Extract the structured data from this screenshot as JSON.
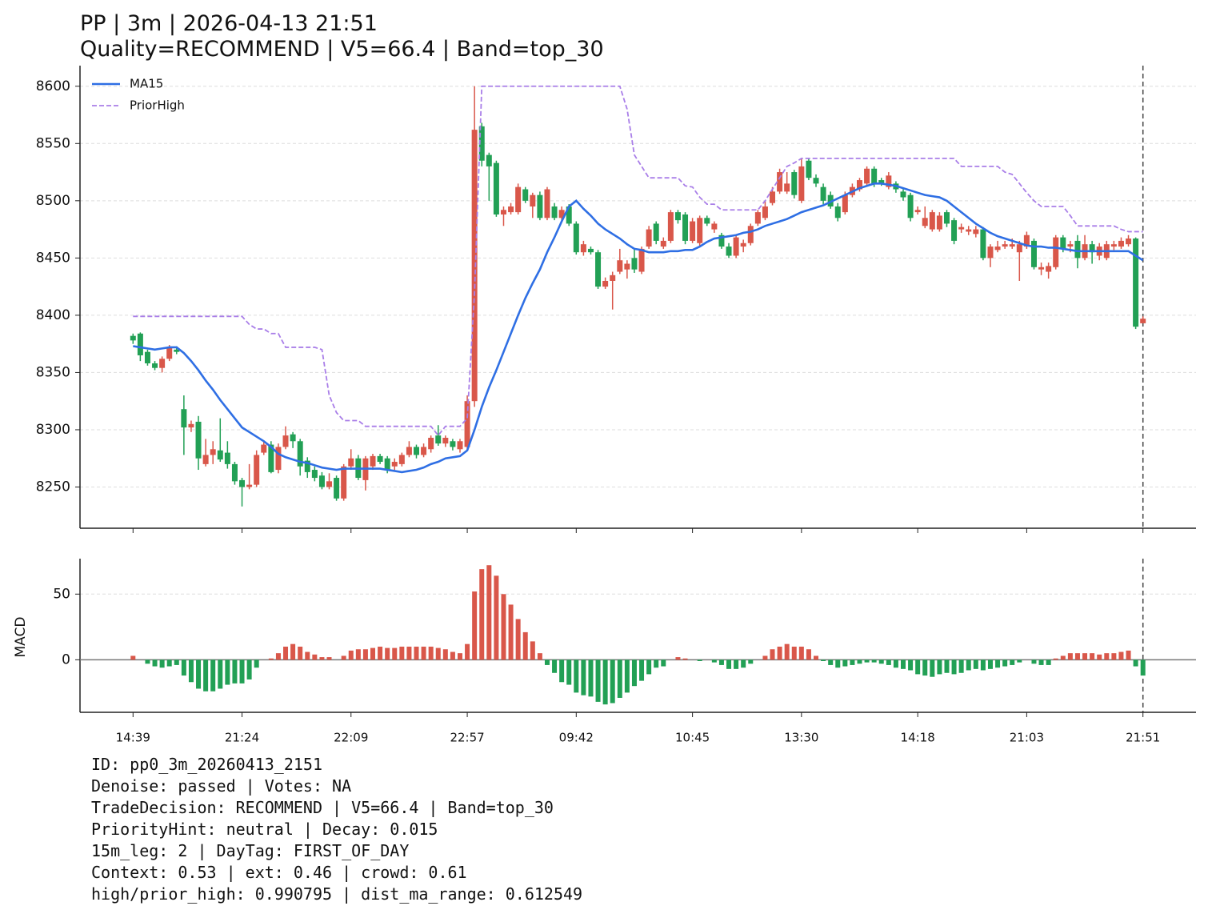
{
  "chart_data": [
    {
      "type": "candlestick",
      "title_lines": [
        "PP | 3m | 2026-04-13 21:51",
        "Quality=RECOMMEND | V5=66.4 | Band=top_30"
      ],
      "up_color": "#d9574a",
      "down_color": "#22a055",
      "open": [
        8382,
        8384,
        8368,
        8358,
        8354,
        8362,
        8370,
        8318,
        8302,
        8307,
        8270,
        8278,
        8282,
        8280,
        8270,
        8256,
        8250,
        8252,
        8280,
        8287,
        8265,
        8285,
        8296,
        8290,
        8273,
        8265,
        8260,
        8250,
        8258,
        8240,
        8268,
        8275,
        8256,
        8268,
        8277,
        8275,
        8268,
        8270,
        8278,
        8285,
        8278,
        8283,
        8295,
        8288,
        8290,
        8283,
        8285,
        8325,
        8565,
        8540,
        8533,
        8488,
        8490,
        8490,
        8510,
        8495,
        8505,
        8485,
        8495,
        8485,
        8495,
        8480,
        8455,
        8458,
        8455,
        8425,
        8430,
        8438,
        8440,
        8450,
        8438,
        8460,
        8480,
        8460,
        8465,
        8490,
        8488,
        8465,
        8463,
        8485,
        8475,
        8470,
        8460,
        8452,
        8460,
        8463,
        8480,
        8485,
        8498,
        8508,
        8508,
        8525,
        8500,
        8535,
        8520,
        8512,
        8505,
        8495,
        8490,
        8505,
        8510,
        8515,
        8528,
        8518,
        8512,
        8515,
        8508,
        8505,
        8490,
        8478,
        8475,
        8475,
        8490,
        8483,
        8475,
        8473,
        8471,
        8475,
        8450,
        8457,
        8460,
        8460,
        8455,
        8460,
        8465,
        8440,
        8438,
        8442,
        8468,
        8460,
        8465,
        8450,
        8462,
        8452,
        8450,
        8460,
        8460,
        8462,
        8467,
        8393
      ],
      "high": [
        8384,
        8385,
        8370,
        8360,
        8364,
        8374,
        8373,
        8330,
        8308,
        8312,
        8292,
        8290,
        8310,
        8290,
        8272,
        8258,
        8270,
        8282,
        8290,
        8290,
        8288,
        8303,
        8298,
        8292,
        8276,
        8268,
        8263,
        8262,
        8260,
        8270,
        8283,
        8278,
        8277,
        8279,
        8279,
        8277,
        8275,
        8280,
        8290,
        8287,
        8288,
        8295,
        8304,
        8295,
        8292,
        8292,
        8330,
        8600,
        8568,
        8542,
        8535,
        8495,
        8498,
        8515,
        8512,
        8507,
        8508,
        8512,
        8498,
        8495,
        8497,
        8482,
        8465,
        8460,
        8457,
        8433,
        8438,
        8458,
        8448,
        8458,
        8460,
        8478,
        8482,
        8468,
        8492,
        8492,
        8490,
        8485,
        8487,
        8487,
        8482,
        8472,
        8463,
        8470,
        8466,
        8480,
        8492,
        8500,
        8512,
        8528,
        8525,
        8527,
        8537,
        8537,
        8523,
        8515,
        8508,
        8498,
        8508,
        8515,
        8520,
        8530,
        8530,
        8520,
        8525,
        8517,
        8510,
        8507,
        8495,
        8495,
        8492,
        8490,
        8492,
        8485,
        8480,
        8478,
        8478,
        8477,
        8462,
        8465,
        8465,
        8467,
        8465,
        8473,
        8467,
        8446,
        8446,
        8470,
        8470,
        8465,
        8470,
        8470,
        8465,
        8463,
        8465,
        8465,
        8468,
        8470,
        8468,
        8399
      ],
      "low": [
        8375,
        8360,
        8356,
        8352,
        8350,
        8360,
        8366,
        8278,
        8298,
        8265,
        8268,
        8270,
        8272,
        8266,
        8252,
        8233,
        8248,
        8250,
        8278,
        8262,
        8262,
        8283,
        8284,
        8260,
        8258,
        8255,
        8248,
        8248,
        8238,
        8238,
        8265,
        8256,
        8247,
        8265,
        8270,
        8262,
        8265,
        8268,
        8276,
        8275,
        8276,
        8280,
        8286,
        8285,
        8282,
        8280,
        8283,
        8320,
        8530,
        8500,
        8486,
        8478,
        8488,
        8488,
        8498,
        8485,
        8483,
        8483,
        8483,
        8483,
        8478,
        8453,
        8452,
        8453,
        8423,
        8423,
        8405,
        8436,
        8432,
        8437,
        8436,
        8458,
        8462,
        8458,
        8463,
        8480,
        8462,
        8463,
        8460,
        8478,
        8472,
        8458,
        8450,
        8450,
        8455,
        8461,
        8478,
        8483,
        8496,
        8506,
        8506,
        8502,
        8498,
        8518,
        8512,
        8497,
        8493,
        8482,
        8488,
        8503,
        8508,
        8513,
        8512,
        8513,
        8510,
        8507,
        8500,
        8482,
        8488,
        8476,
        8473,
        8473,
        8477,
        8462,
        8472,
        8470,
        8468,
        8448,
        8442,
        8455,
        8458,
        8458,
        8430,
        8458,
        8440,
        8435,
        8432,
        8440,
        8455,
        8455,
        8441,
        8448,
        8445,
        8448,
        8448,
        8457,
        8458,
        8460,
        8388,
        8393
      ],
      "close": [
        8378,
        8365,
        8358,
        8354,
        8362,
        8372,
        8368,
        8302,
        8305,
        8275,
        8278,
        8283,
        8274,
        8270,
        8255,
        8250,
        8252,
        8278,
        8287,
        8263,
        8285,
        8295,
        8290,
        8268,
        8263,
        8258,
        8250,
        8255,
        8240,
        8268,
        8275,
        8258,
        8275,
        8277,
        8272,
        8265,
        8272,
        8278,
        8285,
        8278,
        8285,
        8293,
        8288,
        8293,
        8285,
        8290,
        8325,
        8562,
        8535,
        8530,
        8488,
        8492,
        8495,
        8512,
        8500,
        8505,
        8485,
        8510,
        8485,
        8492,
        8480,
        8455,
        8462,
        8455,
        8425,
        8430,
        8435,
        8448,
        8445,
        8440,
        8458,
        8475,
        8465,
        8465,
        8490,
        8483,
        8465,
        8482,
        8485,
        8480,
        8480,
        8460,
        8452,
        8468,
        8463,
        8478,
        8490,
        8495,
        8508,
        8525,
        8515,
        8505,
        8530,
        8520,
        8515,
        8500,
        8495,
        8485,
        8505,
        8512,
        8518,
        8528,
        8515,
        8515,
        8522,
        8510,
        8503,
        8485,
        8492,
        8485,
        8490,
        8487,
        8480,
        8465,
        8477,
        8475,
        8475,
        8450,
        8460,
        8460,
        8462,
        8462,
        8462,
        8470,
        8442,
        8442,
        8443,
        8468,
        8458,
        8462,
        8450,
        8462,
        8455,
        8460,
        8462,
        8462,
        8465,
        8467,
        8390,
        8397
      ],
      "series": [
        {
          "name": "MA15",
          "color": "#2f6fe4",
          "style": "solid",
          "values": [
            8373,
            8372,
            8371,
            8370,
            8371,
            8372,
            8372,
            8367,
            8360,
            8352,
            8343,
            8335,
            8326,
            8318,
            8310,
            8302,
            8298,
            8294,
            8290,
            8285,
            8279,
            8276,
            8274,
            8272,
            8271,
            8269,
            8267,
            8266,
            8265,
            8266,
            8266,
            8266,
            8266,
            8266,
            8266,
            8265,
            8264,
            8263,
            8264,
            8265,
            8267,
            8270,
            8272,
            8275,
            8276,
            8277,
            8282,
            8300,
            8320,
            8337,
            8352,
            8368,
            8384,
            8400,
            8415,
            8428,
            8440,
            8455,
            8468,
            8482,
            8495,
            8500,
            8493,
            8487,
            8480,
            8475,
            8471,
            8467,
            8462,
            8458,
            8457,
            8455,
            8455,
            8455,
            8456,
            8456,
            8457,
            8457,
            8460,
            8464,
            8467,
            8468,
            8469,
            8470,
            8472,
            8473,
            8475,
            8478,
            8480,
            8482,
            8484,
            8487,
            8490,
            8492,
            8494,
            8496,
            8499,
            8502,
            8505,
            8508,
            8511,
            8513,
            8515,
            8515,
            8514,
            8513,
            8511,
            8509,
            8507,
            8505,
            8504,
            8503,
            8500,
            8495,
            8490,
            8485,
            8480,
            8476,
            8472,
            8469,
            8467,
            8465,
            8463,
            8461,
            8460,
            8460,
            8459,
            8459,
            8458,
            8457,
            8456,
            8456,
            8456,
            8456,
            8456,
            8456,
            8456,
            8456,
            8452,
            8448
          ]
        },
        {
          "name": "PriorHigh",
          "color": "#a97ee8",
          "style": "dashed",
          "values": [
            8399,
            8399,
            8399,
            8399,
            8399,
            8399,
            8399,
            8399,
            8399,
            8399,
            8399,
            8399,
            8399,
            8399,
            8399,
            8399,
            8392,
            8388,
            8388,
            8384,
            8384,
            8372,
            8372,
            8372,
            8372,
            8372,
            8370,
            8330,
            8315,
            8308,
            8308,
            8308,
            8303,
            8303,
            8303,
            8303,
            8303,
            8303,
            8303,
            8303,
            8303,
            8303,
            8295,
            8303,
            8303,
            8303,
            8310,
            8420,
            8600,
            8600,
            8600,
            8600,
            8600,
            8600,
            8600,
            8600,
            8600,
            8600,
            8600,
            8600,
            8600,
            8600,
            8600,
            8600,
            8600,
            8600,
            8600,
            8600,
            8580,
            8540,
            8530,
            8520,
            8520,
            8520,
            8520,
            8520,
            8513,
            8512,
            8503,
            8497,
            8497,
            8492,
            8492,
            8492,
            8492,
            8492,
            8492,
            8500,
            8510,
            8520,
            8530,
            8533,
            8537,
            8537,
            8537,
            8537,
            8537,
            8537,
            8537,
            8537,
            8537,
            8537,
            8537,
            8537,
            8537,
            8537,
            8537,
            8537,
            8537,
            8537,
            8537,
            8537,
            8537,
            8537,
            8530,
            8530,
            8530,
            8530,
            8530,
            8530,
            8525,
            8523,
            8515,
            8507,
            8500,
            8495,
            8495,
            8495,
            8495,
            8487,
            8478,
            8478,
            8478,
            8478,
            8478,
            8478,
            8475,
            8473,
            8473,
            8473
          ]
        }
      ],
      "ylim": [
        8214,
        8618
      ],
      "yticks": [
        8250,
        8300,
        8350,
        8400,
        8450,
        8500,
        8550,
        8600
      ],
      "xlim": [
        -7.3,
        146.3
      ],
      "grid": true,
      "legend": "upper left",
      "vline": 139
    },
    {
      "type": "bar",
      "ylabel": "MACD",
      "pos_color": "#d9574a",
      "neg_color": "#22a055",
      "values": [
        3,
        0,
        -3,
        -5,
        -6,
        -5,
        -4,
        -12,
        -17,
        -22,
        -24,
        -24,
        -22,
        -19,
        -18,
        -18,
        -15,
        -6,
        0,
        1,
        5,
        10,
        12,
        10,
        6,
        4,
        2,
        2,
        0,
        3,
        7,
        8,
        8,
        9,
        10,
        9,
        9,
        10,
        10,
        10,
        10,
        10,
        9,
        8,
        6,
        5,
        12,
        52,
        69,
        72,
        64,
        50,
        42,
        31,
        21,
        14,
        5,
        -4,
        -10,
        -17,
        -19,
        -25,
        -27,
        -28,
        -32,
        -34,
        -33,
        -29,
        -25,
        -20,
        -16,
        -11,
        -6,
        -5,
        0,
        2,
        1,
        0,
        -1,
        0,
        -2,
        -4,
        -7,
        -7,
        -6,
        -3,
        0,
        3,
        8,
        10,
        12,
        10,
        10,
        8,
        3,
        -1,
        -4,
        -6,
        -5,
        -4,
        -3,
        -2,
        -2,
        -3,
        -4,
        -6,
        -7,
        -8,
        -11,
        -12,
        -13,
        -11,
        -10,
        -11,
        -10,
        -8,
        -7,
        -8,
        -7,
        -6,
        -5,
        -4,
        -2,
        0,
        -3,
        -4,
        -4,
        1,
        3,
        5,
        5,
        5,
        5,
        4,
        5,
        5,
        6,
        7,
        -5,
        -12
      ],
      "ylim": [
        -40,
        77
      ],
      "yticks": [
        0,
        50
      ],
      "xlim": [
        -7.3,
        146.3
      ],
      "xticks": [
        {
          "value": 0,
          "label": "14:39"
        },
        {
          "value": 15,
          "label": "21:24"
        },
        {
          "value": 30,
          "label": "22:09"
        },
        {
          "value": 46,
          "label": "22:57"
        },
        {
          "value": 61,
          "label": "09:42"
        },
        {
          "value": 77,
          "label": "10:45"
        },
        {
          "value": 92,
          "label": "13:30"
        },
        {
          "value": 108,
          "label": "14:18"
        },
        {
          "value": 123,
          "label": "21:03"
        },
        {
          "value": 139,
          "label": "21:51"
        }
      ],
      "grid": true,
      "vline": 139
    }
  ],
  "info": [
    "ID: pp0_3m_20260413_2151",
    "Denoise: passed | Votes: NA",
    "TradeDecision: RECOMMEND | V5=66.4 | Band=top_30",
    "PriorityHint: neutral | Decay: 0.015",
    "15m_leg: 2 | DayTag: FIRST_OF_DAY",
    "Context: 0.53 | ext: 0.46 | crowd: 0.61",
    "high/prior_high: 0.990795 | dist_ma_range: 0.612549"
  ]
}
